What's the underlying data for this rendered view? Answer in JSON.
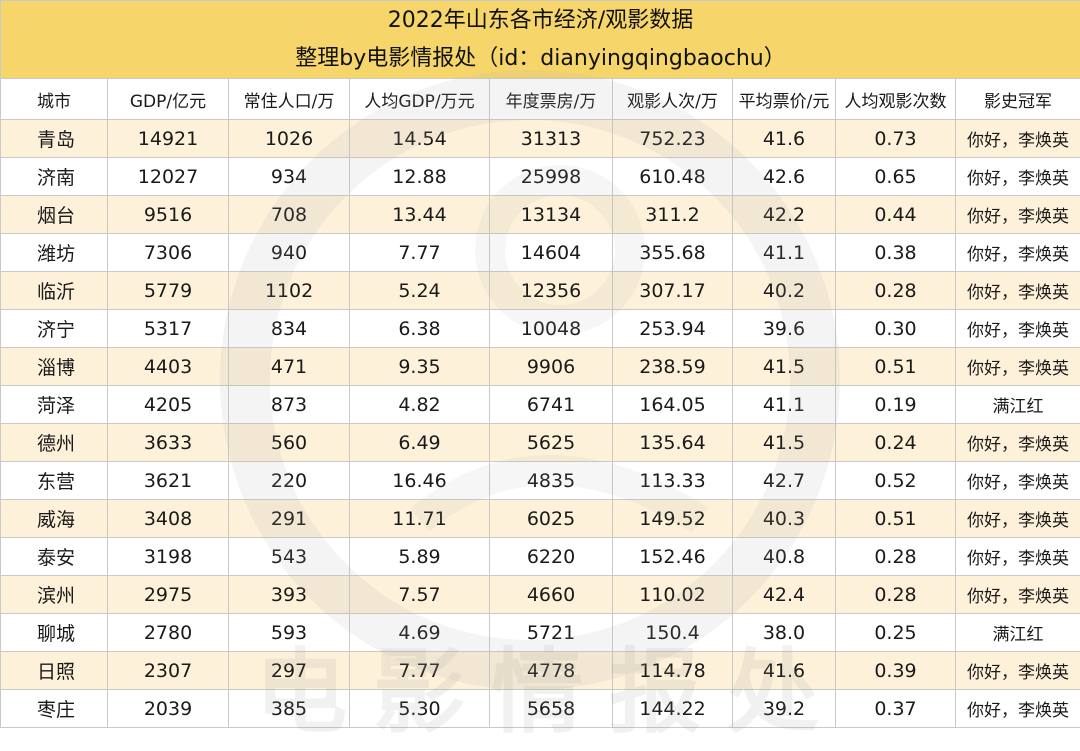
{
  "chart_data": {
    "type": "table",
    "title": "2022年山东各市经济/观影数据",
    "subtitle": "整理by电影情报处（id：dianyingqingbaochu）",
    "watermark": "电影情报处",
    "columns": [
      "城市",
      "GDP/亿元",
      "常住人口/万",
      "人均GDP/万元",
      "年度票房/万",
      "观影人次/万",
      "平均票价/元",
      "人均观影次数",
      "影史冠军"
    ],
    "rows": [
      [
        "青岛",
        "14921",
        "1026",
        "14.54",
        "31313",
        "752.23",
        "41.6",
        "0.73",
        "你好，李焕英"
      ],
      [
        "济南",
        "12027",
        "934",
        "12.88",
        "25998",
        "610.48",
        "42.6",
        "0.65",
        "你好，李焕英"
      ],
      [
        "烟台",
        "9516",
        "708",
        "13.44",
        "13134",
        "311.2",
        "42.2",
        "0.44",
        "你好，李焕英"
      ],
      [
        "潍坊",
        "7306",
        "940",
        "7.77",
        "14604",
        "355.68",
        "41.1",
        "0.38",
        "你好，李焕英"
      ],
      [
        "临沂",
        "5779",
        "1102",
        "5.24",
        "12356",
        "307.17",
        "40.2",
        "0.28",
        "你好，李焕英"
      ],
      [
        "济宁",
        "5317",
        "834",
        "6.38",
        "10048",
        "253.94",
        "39.6",
        "0.30",
        "你好，李焕英"
      ],
      [
        "淄博",
        "4403",
        "471",
        "9.35",
        "9906",
        "238.59",
        "41.5",
        "0.51",
        "你好，李焕英"
      ],
      [
        "菏泽",
        "4205",
        "873",
        "4.82",
        "6741",
        "164.05",
        "41.1",
        "0.19",
        "满江红"
      ],
      [
        "德州",
        "3633",
        "560",
        "6.49",
        "5625",
        "135.64",
        "41.5",
        "0.24",
        "你好，李焕英"
      ],
      [
        "东营",
        "3621",
        "220",
        "16.46",
        "4835",
        "113.33",
        "42.7",
        "0.52",
        "你好，李焕英"
      ],
      [
        "威海",
        "3408",
        "291",
        "11.71",
        "6025",
        "149.52",
        "40.3",
        "0.51",
        "你好，李焕英"
      ],
      [
        "泰安",
        "3198",
        "543",
        "5.89",
        "6220",
        "152.46",
        "40.8",
        "0.28",
        "你好，李焕英"
      ],
      [
        "滨州",
        "2975",
        "393",
        "7.57",
        "4660",
        "110.02",
        "42.4",
        "0.28",
        "你好，李焕英"
      ],
      [
        "聊城",
        "2780",
        "593",
        "4.69",
        "5721",
        "150.4",
        "38.0",
        "0.25",
        "满江红"
      ],
      [
        "日照",
        "2307",
        "297",
        "7.77",
        "4778",
        "114.78",
        "41.6",
        "0.39",
        "你好，李焕英"
      ],
      [
        "枣庄",
        "2039",
        "385",
        "5.30",
        "5658",
        "144.22",
        "39.2",
        "0.37",
        "你好，李焕英"
      ]
    ]
  },
  "colors": {
    "title_bg": "#f6d66b",
    "row_alt_bg": "#fdf1d9",
    "row_bg": "#ffffff",
    "border": "#c9c9c9"
  }
}
